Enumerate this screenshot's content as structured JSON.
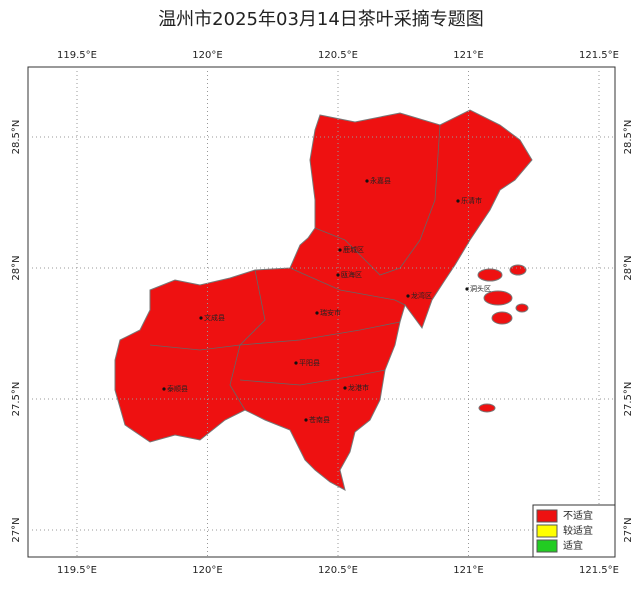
{
  "map": {
    "title": "温州市2025年03月14日茶叶采摘专题图",
    "lon_ticks": [
      {
        "value": 119.5,
        "label": "119.5°E"
      },
      {
        "value": 120,
        "label": "120°E"
      },
      {
        "value": 120.5,
        "label": "120.5°E"
      },
      {
        "value": 121,
        "label": "121°E"
      },
      {
        "value": 121.5,
        "label": "121.5°E"
      }
    ],
    "lat_ticks": [
      {
        "value": 28.5,
        "label": "28.5°N"
      },
      {
        "value": 28,
        "label": "28°N"
      },
      {
        "value": 27.5,
        "label": "27.5°N"
      },
      {
        "value": 27,
        "label": "27°N"
      }
    ],
    "places": [
      "永嘉县",
      "乐清市",
      "鹿城区",
      "瓯海区",
      "龙湾区",
      "洞头区",
      "瑞安市",
      "文成县",
      "平阳县",
      "泰顺县",
      "龙港市",
      "苍南县"
    ],
    "legend": [
      {
        "label": "不适宜",
        "color": "#ee1111"
      },
      {
        "label": "较适宜",
        "color": "#ffff00"
      },
      {
        "label": "适宜",
        "color": "#22cc22"
      }
    ]
  }
}
